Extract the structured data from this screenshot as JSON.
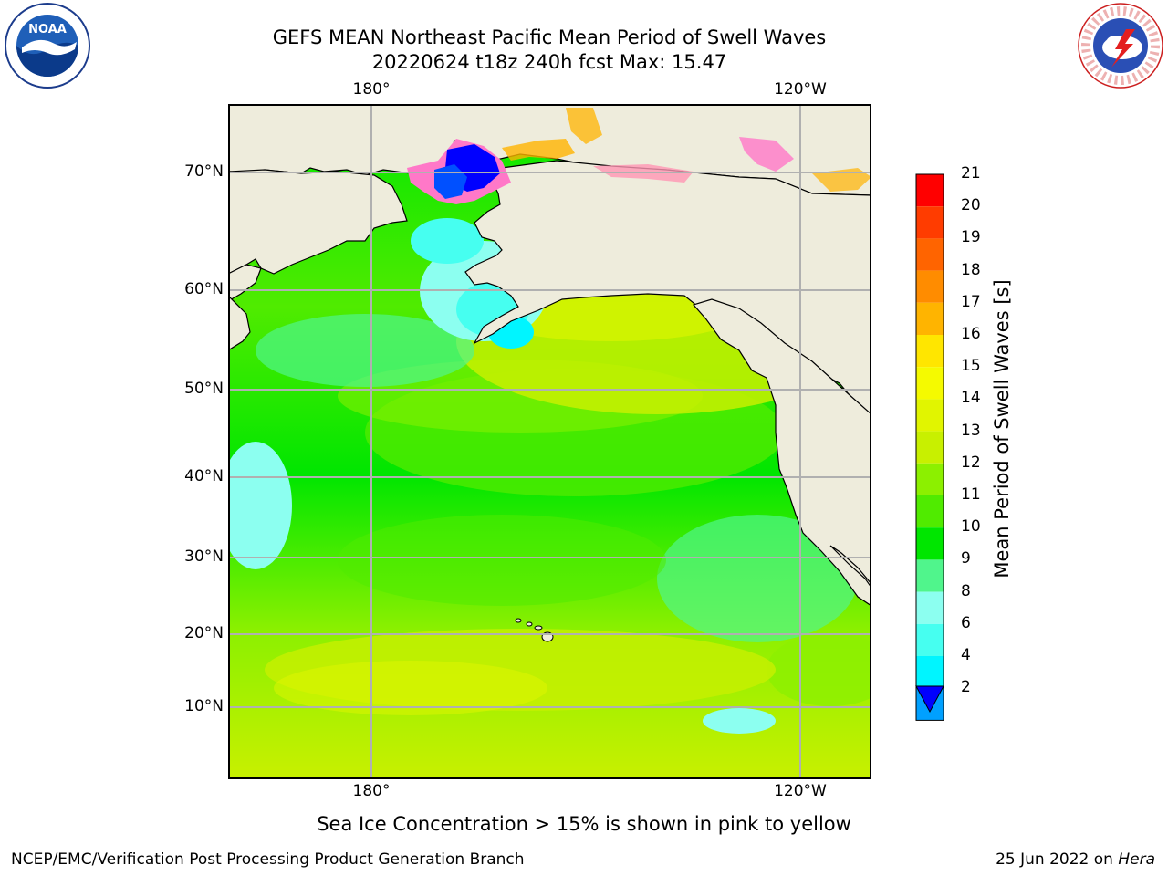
{
  "title": {
    "line1": "GEFS MEAN Northeast Pacific Mean Period of Swell Waves",
    "line2": "20220624 t18z 240h fcst   Max: 15.47"
  },
  "map": {
    "top_lon_labels": [
      "180°",
      "120°W"
    ],
    "bottom_lon_labels": [
      "180°",
      "120°W"
    ],
    "lat_labels": [
      "70°N",
      "60°N",
      "50°N",
      "40°N",
      "30°N",
      "20°N",
      "10°N"
    ],
    "land_color": "#eeecdc",
    "grid_color": "#b0b0b0"
  },
  "colorbar": {
    "label": "Mean Period of Swell Waves [s]",
    "ticks": [
      "21",
      "20",
      "19",
      "18",
      "17",
      "16",
      "15",
      "14",
      "13",
      "12",
      "11",
      "10",
      "9",
      "8",
      "6",
      "4",
      "2"
    ],
    "colors": [
      "#ff0000",
      "#ff3c00",
      "#ff6400",
      "#ff8c00",
      "#ffb400",
      "#ffe600",
      "#f5fa00",
      "#e1f500",
      "#c8f000",
      "#8cf000",
      "#50eb00",
      "#00e600",
      "#50f58c",
      "#8cfff0",
      "#46fff0",
      "#00f5ff",
      "#00a0ff"
    ],
    "extend_color": "#0000ff"
  },
  "sea_ice_note": "Sea Ice Concentration > 15% is shown in pink to yellow",
  "footer": {
    "left": "NCEP/EMC/Verification Post Processing Product Generation Branch",
    "right_prefix": "25 Jun 2022 on ",
    "right_host": "Hera"
  },
  "logos": {
    "noaa": "NOAA",
    "nws_ring": "NATIONAL WEATHER SERVICE"
  }
}
